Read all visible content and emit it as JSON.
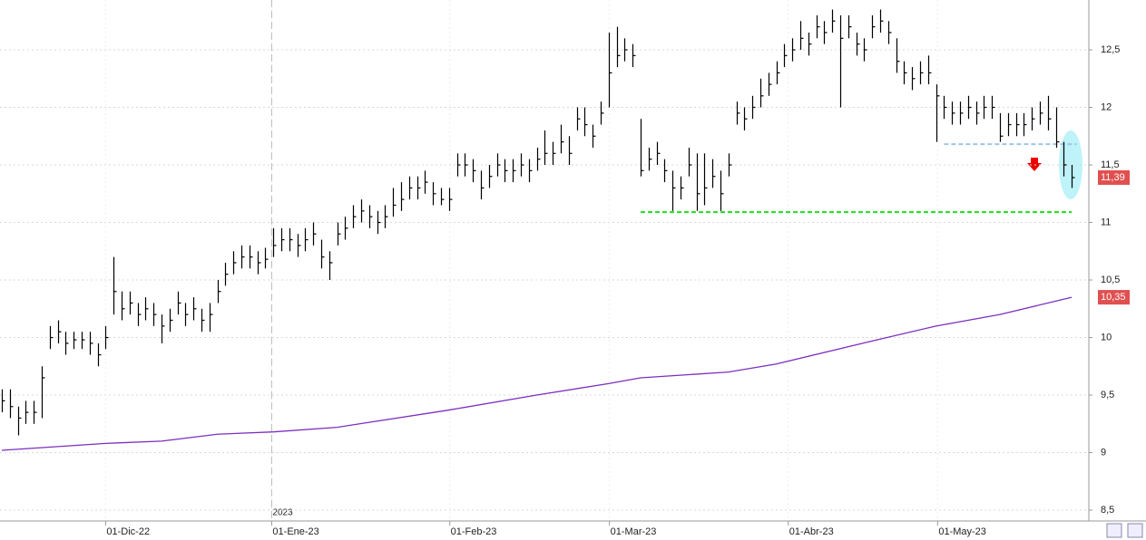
{
  "chart_data": {
    "type": "ohlc",
    "xlim": [
      -0.227,
      136.14
    ],
    "ylim": [
      8.406,
      12.933
    ],
    "yticks": [
      {
        "value": 12.5,
        "label": "12,5"
      },
      12,
      {
        "value": 11.5,
        "label": "11,5"
      },
      11,
      {
        "value": 10.5,
        "label": "10,5"
      },
      10,
      {
        "value": 9.5,
        "label": "9,5"
      },
      9,
      {
        "value": 8.5,
        "label": "8,5"
      }
    ],
    "xticks": [
      {
        "value": 13,
        "label": "01-Dic-22"
      },
      {
        "value": 33.8,
        "label": "01-Ene-23"
      },
      {
        "value": 56.1,
        "label": "01-Feb-23"
      },
      {
        "value": 76.1,
        "label": "01-Mar-23"
      },
      {
        "value": 98.5,
        "label": "01-Abr-23"
      },
      {
        "value": 117.2,
        "label": "01-May-23"
      }
    ],
    "year_label": {
      "value": 33.8,
      "label": "2023"
    },
    "grid": true,
    "color": "#000000",
    "close": [
      9.45,
      9.4,
      9.3,
      9.35,
      9.35,
      9.65,
      10.0,
      10.05,
      9.95,
      9.98,
      9.98,
      9.95,
      9.85,
      10.0,
      10.4,
      10.25,
      10.3,
      10.2,
      10.25,
      10.2,
      10.1,
      10.15,
      10.3,
      10.2,
      10.25,
      10.15,
      10.2,
      10.4,
      10.55,
      10.65,
      10.7,
      10.7,
      10.65,
      10.68,
      10.8,
      10.85,
      10.85,
      10.8,
      10.85,
      10.9,
      10.7,
      10.65,
      10.9,
      10.95,
      11.05,
      11.1,
      11.05,
      11.0,
      11.05,
      11.15,
      11.2,
      11.3,
      11.3,
      11.35,
      11.25,
      11.2,
      11.2,
      11.5,
      11.5,
      11.45,
      11.3,
      11.4,
      11.5,
      11.45,
      11.45,
      11.5,
      11.45,
      11.55,
      11.6,
      11.6,
      11.7,
      11.6,
      11.9,
      11.85,
      11.75,
      11.95,
      12.3,
      12.45,
      12.5,
      12.45,
      11.45,
      11.55,
      11.6,
      11.45,
      11.3,
      11.3,
      11.5,
      11.25,
      11.3,
      11.4,
      11.25,
      11.5,
      11.95,
      11.9,
      12.0,
      12.1,
      12.2,
      12.3,
      12.45,
      12.5,
      12.6,
      12.55,
      12.7,
      12.65,
      12.75,
      12.6,
      12.7,
      12.55,
      12.5,
      12.7,
      12.75,
      12.65,
      12.4,
      12.3,
      12.25,
      12.3,
      12.3,
      12.1,
      12.0,
      11.95,
      11.95,
      12.0,
      11.95,
      12.0,
      12.0,
      11.75,
      11.85,
      11.85,
      11.85,
      11.9,
      11.95,
      11.9,
      11.7,
      11.5,
      11.39
    ],
    "high": [
      9.55,
      9.55,
      9.4,
      9.45,
      9.45,
      9.75,
      10.1,
      10.15,
      10.05,
      10.05,
      10.05,
      10.05,
      9.95,
      10.1,
      10.7,
      10.4,
      10.4,
      10.3,
      10.35,
      10.3,
      10.2,
      10.25,
      10.4,
      10.3,
      10.35,
      10.25,
      10.3,
      10.5,
      10.65,
      10.75,
      10.8,
      10.8,
      10.75,
      10.78,
      10.95,
      10.95,
      10.95,
      10.9,
      10.95,
      11.0,
      10.85,
      10.75,
      11.0,
      11.05,
      11.15,
      11.2,
      11.15,
      11.1,
      11.15,
      11.3,
      11.35,
      11.4,
      11.4,
      11.45,
      11.35,
      11.3,
      11.3,
      11.6,
      11.6,
      11.55,
      11.45,
      11.5,
      11.6,
      11.55,
      11.55,
      11.6,
      11.55,
      11.65,
      11.8,
      11.7,
      11.85,
      11.75,
      12.0,
      12.0,
      11.85,
      12.05,
      12.65,
      12.7,
      12.6,
      12.55,
      11.9,
      11.65,
      11.7,
      11.55,
      11.45,
      11.4,
      11.65,
      11.6,
      11.6,
      11.55,
      11.45,
      11.6,
      12.05,
      12.0,
      12.1,
      12.25,
      12.3,
      12.4,
      12.55,
      12.6,
      12.75,
      12.65,
      12.8,
      12.75,
      12.85,
      12.8,
      12.8,
      12.65,
      12.6,
      12.8,
      12.85,
      12.75,
      12.6,
      12.4,
      12.35,
      12.4,
      12.45,
      12.2,
      12.1,
      12.05,
      12.05,
      12.1,
      12.05,
      12.1,
      12.1,
      11.95,
      11.95,
      11.95,
      11.95,
      12.0,
      12.05,
      12.1,
      12.0,
      11.7,
      11.5
    ],
    "low": [
      9.35,
      9.3,
      9.15,
      9.25,
      9.25,
      9.3,
      9.9,
      9.95,
      9.85,
      9.9,
      9.9,
      9.85,
      9.75,
      9.9,
      10.2,
      10.15,
      10.2,
      10.1,
      10.15,
      10.1,
      9.95,
      10.05,
      10.2,
      10.1,
      10.15,
      10.05,
      10.05,
      10.3,
      10.45,
      10.55,
      10.6,
      10.6,
      10.55,
      10.6,
      10.7,
      10.75,
      10.75,
      10.7,
      10.75,
      10.8,
      10.6,
      10.5,
      10.8,
      10.85,
      10.95,
      11.0,
      10.95,
      10.9,
      10.95,
      11.05,
      11.1,
      11.2,
      11.2,
      11.25,
      11.15,
      11.15,
      11.1,
      11.4,
      11.4,
      11.35,
      11.2,
      11.3,
      11.4,
      11.35,
      11.35,
      11.4,
      11.35,
      11.45,
      11.5,
      11.5,
      11.6,
      11.5,
      11.8,
      11.75,
      11.65,
      11.85,
      12.0,
      12.35,
      12.4,
      12.35,
      11.4,
      11.45,
      11.5,
      11.35,
      11.1,
      11.2,
      11.4,
      11.1,
      11.15,
      11.3,
      11.1,
      11.4,
      11.85,
      11.8,
      11.9,
      12.0,
      12.1,
      12.2,
      12.35,
      12.4,
      12.5,
      12.45,
      12.6,
      12.55,
      12.65,
      12.0,
      12.6,
      12.45,
      12.4,
      12.6,
      12.65,
      12.55,
      12.3,
      12.2,
      12.15,
      12.2,
      12.2,
      11.7,
      11.9,
      11.85,
      11.85,
      11.9,
      11.85,
      11.9,
      11.9,
      11.7,
      11.75,
      11.75,
      11.75,
      11.8,
      11.85,
      11.8,
      11.65,
      11.4,
      11.3
    ],
    "ma": {
      "color": "#7b2fbf",
      "x": [
        0,
        13,
        20,
        27,
        34,
        42,
        56,
        67,
        76,
        80,
        91,
        97,
        109,
        117,
        125,
        134
      ],
      "values": [
        9.02,
        9.08,
        9.1,
        9.16,
        9.18,
        9.22,
        9.37,
        9.5,
        9.6,
        9.65,
        9.7,
        9.77,
        9.97,
        10.1,
        10.2,
        10.35
      ]
    },
    "hlines": [
      {
        "value": 11.68,
        "x": [
          118,
          134.6
        ],
        "color": "#9fc5e8"
      },
      {
        "value": 11.09,
        "x": [
          80,
          134
        ],
        "color": "#22dd22"
      }
    ],
    "price_labels": [
      {
        "value": 11.39,
        "label": "11,39",
        "color": "#e05050"
      },
      {
        "value": 10.35,
        "label": "10,35",
        "color": "#e05050"
      }
    ]
  }
}
